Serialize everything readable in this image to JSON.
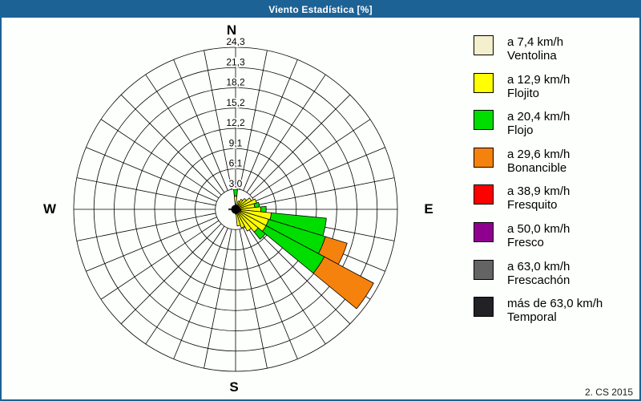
{
  "chart_data": {
    "type": "wind-rose",
    "title": "Viento Estadística [%]",
    "units": "%",
    "max_value": 24.3,
    "rings": 8,
    "ring_labels": [
      "3,0",
      "6,1",
      "9,1",
      "12,2",
      "15,2",
      "18,2",
      "21,3",
      "24,3"
    ],
    "ring_values": [
      3.0,
      6.1,
      9.1,
      12.2,
      15.2,
      18.2,
      21.3,
      24.3
    ],
    "compass_labels": {
      "n": "N",
      "e": "E",
      "s": "S",
      "w": "W"
    },
    "grid_sectors": 32,
    "sector_width_deg": 11.25,
    "grid_color": "#000000",
    "center_marker_color": "#000000",
    "colors": {
      "ventolina": "#F4EFCC",
      "flojito": "#FFFF00",
      "flojo": "#00DE00",
      "bonancible": "#F5820D",
      "fresquito": "#FF0000",
      "fresco": "#90008F",
      "frescachon": "#646464",
      "temporal": "#222126"
    },
    "petals": [
      {
        "bearing_deg": 0,
        "segments": [
          {
            "key": "ventolina",
            "to": 0.5
          },
          {
            "key": "flojito",
            "to": 2.0
          },
          {
            "key": "flojo",
            "to": 3.0
          }
        ]
      },
      {
        "bearing_deg": 22.5,
        "segments": [
          {
            "key": "flojito",
            "to": 1.3
          }
        ]
      },
      {
        "bearing_deg": 33.75,
        "segments": [
          {
            "key": "flojito",
            "to": 1.7
          }
        ]
      },
      {
        "bearing_deg": 45,
        "segments": [
          {
            "key": "ventolina",
            "to": 0.4
          },
          {
            "key": "flojito",
            "to": 2.1
          }
        ]
      },
      {
        "bearing_deg": 56.25,
        "segments": [
          {
            "key": "flojito",
            "to": 2.7
          }
        ]
      },
      {
        "bearing_deg": 67.5,
        "segments": [
          {
            "key": "flojito",
            "to": 3.3
          }
        ]
      },
      {
        "bearing_deg": 78.75,
        "segments": [
          {
            "key": "flojito",
            "to": 2.9
          },
          {
            "key": "flojo",
            "to": 3.6
          }
        ]
      },
      {
        "bearing_deg": 90,
        "segments": [
          {
            "key": "ventolina",
            "to": 0.8
          },
          {
            "key": "flojito",
            "to": 3.8
          },
          {
            "key": "flojo",
            "to": 4.6
          }
        ]
      },
      {
        "bearing_deg": 101.25,
        "segments": [
          {
            "key": "ventolina",
            "to": 0.8
          },
          {
            "key": "flojito",
            "to": 5.4
          },
          {
            "key": "flojo",
            "to": 13.7
          }
        ]
      },
      {
        "bearing_deg": 112.5,
        "segments": [
          {
            "key": "ventolina",
            "to": 0.8
          },
          {
            "key": "flojito",
            "to": 5.2
          },
          {
            "key": "flojo",
            "to": 14.1
          },
          {
            "key": "bonancible",
            "to": 17.5
          }
        ]
      },
      {
        "bearing_deg": 123.75,
        "segments": [
          {
            "key": "ventolina",
            "to": 0.8
          },
          {
            "key": "flojito",
            "to": 5.2
          },
          {
            "key": "flojo",
            "to": 15.1
          },
          {
            "key": "bonancible",
            "to": 23.5
          }
        ]
      },
      {
        "bearing_deg": 135,
        "segments": [
          {
            "key": "flojito",
            "to": 4.4
          },
          {
            "key": "flojo",
            "to": 5.8
          }
        ]
      },
      {
        "bearing_deg": 146.25,
        "segments": [
          {
            "key": "flojito",
            "to": 3.7
          }
        ]
      },
      {
        "bearing_deg": 157.5,
        "segments": [
          {
            "key": "flojito",
            "to": 2.9
          }
        ]
      },
      {
        "bearing_deg": 168.75,
        "segments": [
          {
            "key": "flojito",
            "to": 2.5
          }
        ]
      },
      {
        "bearing_deg": 180,
        "segments": [
          {
            "key": "ventolina",
            "to": 0.7
          }
        ]
      },
      {
        "bearing_deg": 191.25,
        "segments": [
          {
            "key": "ventolina",
            "to": 0.5
          }
        ]
      },
      {
        "bearing_deg": 270,
        "segments": [
          {
            "key": "ventolina",
            "to": 1.0
          }
        ]
      }
    ]
  },
  "legend": {
    "items": [
      {
        "speed": "a 7,4 km/h",
        "name": "Ventolina",
        "color_key": "ventolina"
      },
      {
        "speed": "a 12,9 km/h",
        "name": "Flojito",
        "color_key": "flojito"
      },
      {
        "speed": "a 20,4 km/h",
        "name": "Flojo",
        "color_key": "flojo"
      },
      {
        "speed": "a 29,6 km/h",
        "name": "Bonancible",
        "color_key": "bonancible"
      },
      {
        "speed": "a 38,9 km/h",
        "name": "Fresquito",
        "color_key": "fresquito"
      },
      {
        "speed": "a 50,0 km/h",
        "name": "Fresco",
        "color_key": "fresco"
      },
      {
        "speed": "a 63,0 km/h",
        "name": "Frescachón",
        "color_key": "frescachon"
      },
      {
        "speed": "más de 63,0 km/h",
        "name": "Temporal",
        "color_key": "temporal"
      }
    ]
  },
  "window": {
    "accent_color": "#1D6295",
    "watermark": "2. CS 2015"
  }
}
